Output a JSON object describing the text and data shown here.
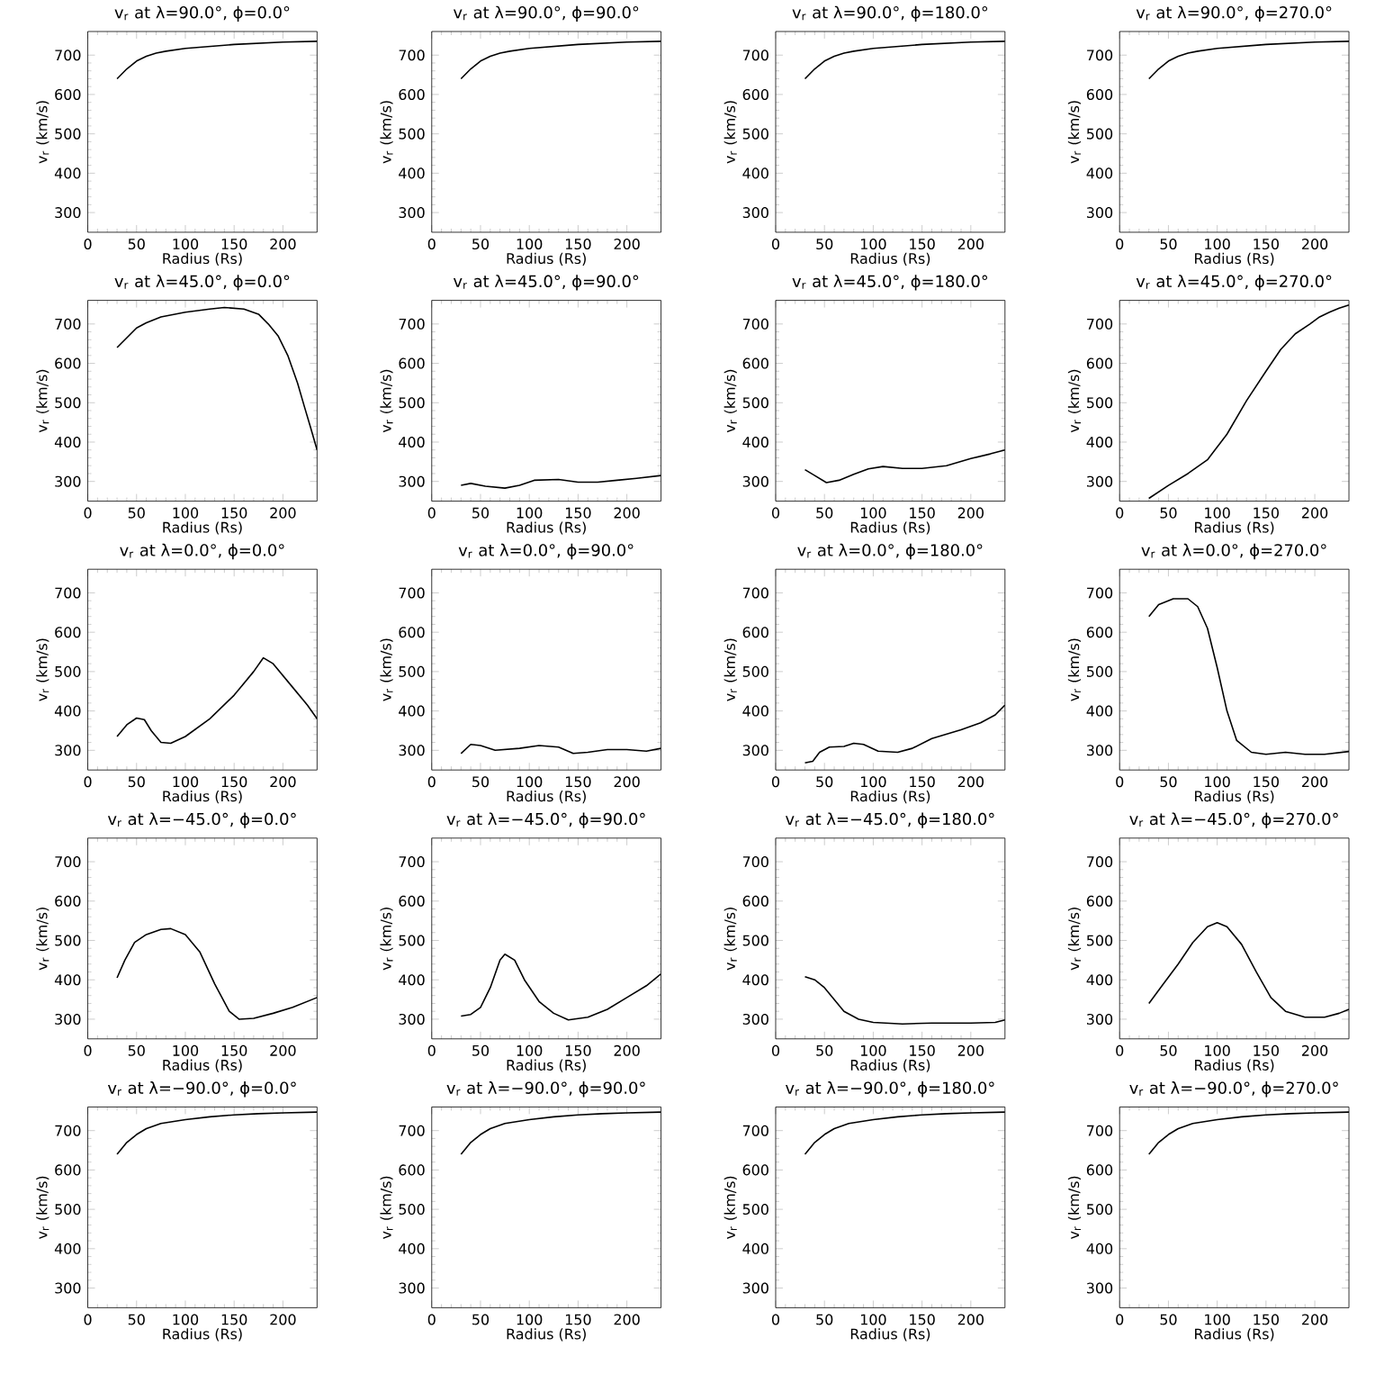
{
  "chart_data": [
    {
      "type": "line",
      "title": "v$_{r}$ at λ=90.0°, ϕ=0.0°",
      "xlabel": "Radius (Rs)",
      "ylabel": "v$_{r}$ (km/s)",
      "xlim": [
        0,
        235
      ],
      "ylim": [
        250,
        760
      ],
      "xticks": [
        0,
        50,
        100,
        150,
        200
      ],
      "yticks": [
        300,
        400,
        500,
        600,
        700
      ],
      "color": "#000000",
      "x": [
        30,
        40,
        50,
        60,
        70,
        80,
        100,
        125,
        150,
        175,
        200,
        235
      ],
      "values": [
        640,
        665,
        685,
        697,
        705,
        710,
        717,
        722,
        727,
        730,
        733,
        735
      ]
    },
    {
      "type": "line",
      "title": "v$_{r}$ at λ=90.0°, ϕ=90.0°",
      "xlabel": "Radius (Rs)",
      "ylabel": "v$_{r}$ (km/s)",
      "xlim": [
        0,
        235
      ],
      "ylim": [
        250,
        760
      ],
      "xticks": [
        0,
        50,
        100,
        150,
        200
      ],
      "yticks": [
        300,
        400,
        500,
        600,
        700
      ],
      "color": "#000000",
      "x": [
        30,
        40,
        50,
        60,
        70,
        80,
        100,
        125,
        150,
        175,
        200,
        235
      ],
      "values": [
        640,
        665,
        685,
        697,
        705,
        710,
        717,
        722,
        727,
        730,
        733,
        735
      ]
    },
    {
      "type": "line",
      "title": "v$_{r}$ at λ=90.0°, ϕ=180.0°",
      "xlabel": "Radius (Rs)",
      "ylabel": "v$_{r}$ (km/s)",
      "xlim": [
        0,
        235
      ],
      "ylim": [
        250,
        760
      ],
      "xticks": [
        0,
        50,
        100,
        150,
        200
      ],
      "yticks": [
        300,
        400,
        500,
        600,
        700
      ],
      "color": "#000000",
      "x": [
        30,
        40,
        50,
        60,
        70,
        80,
        100,
        125,
        150,
        175,
        200,
        235
      ],
      "values": [
        640,
        665,
        685,
        697,
        705,
        710,
        717,
        722,
        727,
        730,
        733,
        735
      ]
    },
    {
      "type": "line",
      "title": "v$_{r}$ at λ=90.0°, ϕ=270.0°",
      "xlabel": "Radius (Rs)",
      "ylabel": "v$_{r}$ (km/s)",
      "xlim": [
        0,
        235
      ],
      "ylim": [
        250,
        760
      ],
      "xticks": [
        0,
        50,
        100,
        150,
        200
      ],
      "yticks": [
        300,
        400,
        500,
        600,
        700
      ],
      "color": "#000000",
      "x": [
        30,
        40,
        50,
        60,
        70,
        80,
        100,
        125,
        150,
        175,
        200,
        235
      ],
      "values": [
        640,
        665,
        685,
        697,
        705,
        710,
        717,
        722,
        727,
        730,
        733,
        735
      ]
    },
    {
      "type": "line",
      "title": "v$_{r}$ at λ=45.0°, ϕ=0.0°",
      "xlabel": "Radius (Rs)",
      "ylabel": "v$_{r}$ (km/s)",
      "xlim": [
        0,
        235
      ],
      "ylim": [
        250,
        760
      ],
      "xticks": [
        0,
        50,
        100,
        150,
        200
      ],
      "yticks": [
        300,
        400,
        500,
        600,
        700
      ],
      "color": "#000000",
      "x": [
        30,
        40,
        50,
        60,
        75,
        100,
        125,
        140,
        160,
        175,
        185,
        195,
        205,
        215,
        222,
        228,
        235
      ],
      "values": [
        640,
        665,
        690,
        703,
        718,
        730,
        738,
        742,
        738,
        725,
        700,
        670,
        620,
        550,
        490,
        440,
        380
      ]
    },
    {
      "type": "line",
      "title": "v$_{r}$ at λ=45.0°, ϕ=90.0°",
      "xlabel": "Radius (Rs)",
      "ylabel": "v$_{r}$ (km/s)",
      "xlim": [
        0,
        235
      ],
      "ylim": [
        250,
        760
      ],
      "xticks": [
        0,
        50,
        100,
        150,
        200
      ],
      "yticks": [
        300,
        400,
        500,
        600,
        700
      ],
      "color": "#000000",
      "x": [
        30,
        40,
        55,
        75,
        90,
        105,
        130,
        150,
        170,
        190,
        210,
        235
      ],
      "values": [
        290,
        295,
        288,
        283,
        290,
        303,
        305,
        298,
        298,
        303,
        308,
        315
      ]
    },
    {
      "type": "line",
      "title": "v$_{r}$ at λ=45.0°, ϕ=180.0°",
      "xlabel": "Radius (Rs)",
      "ylabel": "v$_{r}$ (km/s)",
      "xlim": [
        0,
        235
      ],
      "ylim": [
        250,
        760
      ],
      "xticks": [
        0,
        50,
        100,
        150,
        200
      ],
      "yticks": [
        300,
        400,
        500,
        600,
        700
      ],
      "color": "#000000",
      "x": [
        30,
        40,
        52,
        65,
        80,
        95,
        110,
        130,
        150,
        175,
        200,
        220,
        235
      ],
      "values": [
        330,
        315,
        297,
        303,
        318,
        332,
        338,
        333,
        333,
        340,
        358,
        370,
        380
      ]
    },
    {
      "type": "line",
      "title": "v$_{r}$ at λ=45.0°, ϕ=270.0°",
      "xlabel": "Radius (Rs)",
      "ylabel": "v$_{r}$ (km/s)",
      "xlim": [
        0,
        235
      ],
      "ylim": [
        250,
        760
      ],
      "xticks": [
        0,
        50,
        100,
        150,
        200
      ],
      "yticks": [
        300,
        400,
        500,
        600,
        700
      ],
      "color": "#000000",
      "x": [
        30,
        50,
        70,
        90,
        110,
        130,
        150,
        165,
        180,
        195,
        205,
        215,
        225,
        235
      ],
      "values": [
        257,
        290,
        320,
        355,
        420,
        505,
        580,
        635,
        675,
        700,
        718,
        730,
        740,
        748
      ]
    },
    {
      "type": "line",
      "title": "v$_{r}$ at λ=0.0°, ϕ=0.0°",
      "xlabel": "Radius (Rs)",
      "ylabel": "v$_{r}$ (km/s)",
      "xlim": [
        0,
        235
      ],
      "ylim": [
        250,
        760
      ],
      "xticks": [
        0,
        50,
        100,
        150,
        200
      ],
      "yticks": [
        300,
        400,
        500,
        600,
        700
      ],
      "color": "#000000",
      "x": [
        30,
        40,
        50,
        58,
        65,
        75,
        85,
        100,
        125,
        150,
        170,
        180,
        190,
        210,
        225,
        235
      ],
      "values": [
        335,
        365,
        382,
        378,
        350,
        320,
        318,
        335,
        380,
        440,
        500,
        535,
        520,
        460,
        415,
        380
      ]
    },
    {
      "type": "line",
      "title": "v$_{r}$ at λ=0.0°, ϕ=90.0°",
      "xlabel": "Radius (Rs)",
      "ylabel": "v$_{r}$ (km/s)",
      "xlim": [
        0,
        235
      ],
      "ylim": [
        250,
        760
      ],
      "xticks": [
        0,
        50,
        100,
        150,
        200
      ],
      "yticks": [
        300,
        400,
        500,
        600,
        700
      ],
      "color": "#000000",
      "x": [
        30,
        40,
        50,
        65,
        90,
        110,
        130,
        145,
        160,
        180,
        200,
        220,
        235
      ],
      "values": [
        292,
        315,
        312,
        300,
        305,
        312,
        308,
        292,
        295,
        302,
        302,
        298,
        305
      ]
    },
    {
      "type": "line",
      "title": "v$_{r}$ at λ=0.0°, ϕ=180.0°",
      "xlabel": "Radius (Rs)",
      "ylabel": "v$_{r}$ (km/s)",
      "xlim": [
        0,
        235
      ],
      "ylim": [
        250,
        760
      ],
      "xticks": [
        0,
        50,
        100,
        150,
        200
      ],
      "yticks": [
        300,
        400,
        500,
        600,
        700
      ],
      "color": "#000000",
      "x": [
        30,
        38,
        45,
        55,
        70,
        80,
        90,
        105,
        125,
        140,
        160,
        190,
        210,
        225,
        235
      ],
      "values": [
        268,
        272,
        295,
        308,
        310,
        318,
        315,
        298,
        295,
        305,
        330,
        352,
        370,
        390,
        415
      ]
    },
    {
      "type": "line",
      "title": "v$_{r}$ at λ=0.0°, ϕ=270.0°",
      "xlabel": "Radius (Rs)",
      "ylabel": "v$_{r}$ (km/s)",
      "xlim": [
        0,
        235
      ],
      "ylim": [
        250,
        760
      ],
      "xticks": [
        0,
        50,
        100,
        150,
        200
      ],
      "yticks": [
        300,
        400,
        500,
        600,
        700
      ],
      "color": "#000000",
      "x": [
        30,
        40,
        55,
        70,
        80,
        90,
        100,
        110,
        120,
        135,
        150,
        170,
        190,
        210,
        235
      ],
      "values": [
        640,
        670,
        685,
        685,
        665,
        610,
        510,
        400,
        325,
        295,
        290,
        295,
        290,
        290,
        297
      ]
    },
    {
      "type": "line",
      "title": "v$_{r}$ at λ=−45.0°, ϕ=0.0°",
      "xlabel": "Radius (Rs)",
      "ylabel": "v$_{r}$ (km/s)",
      "xlim": [
        0,
        235
      ],
      "ylim": [
        250,
        760
      ],
      "xticks": [
        0,
        50,
        100,
        150,
        200
      ],
      "yticks": [
        300,
        400,
        500,
        600,
        700
      ],
      "color": "#000000",
      "x": [
        30,
        38,
        48,
        60,
        75,
        85,
        100,
        115,
        130,
        145,
        155,
        170,
        190,
        210,
        235
      ],
      "values": [
        405,
        450,
        495,
        515,
        528,
        530,
        515,
        470,
        390,
        320,
        300,
        302,
        315,
        330,
        355
      ]
    },
    {
      "type": "line",
      "title": "v$_{r}$ at λ=−45.0°, ϕ=90.0°",
      "xlabel": "Radius (Rs)",
      "ylabel": "v$_{r}$ (km/s)",
      "xlim": [
        0,
        235
      ],
      "ylim": [
        250,
        760
      ],
      "xticks": [
        0,
        50,
        100,
        150,
        200
      ],
      "yticks": [
        300,
        400,
        500,
        600,
        700
      ],
      "color": "#000000",
      "x": [
        30,
        40,
        50,
        60,
        70,
        75,
        85,
        95,
        110,
        125,
        140,
        160,
        180,
        200,
        220,
        235
      ],
      "values": [
        308,
        312,
        330,
        380,
        450,
        465,
        450,
        400,
        345,
        315,
        298,
        305,
        325,
        355,
        385,
        415
      ]
    },
    {
      "type": "line",
      "title": "v$_{r}$ at λ=−45.0°, ϕ=180.0°",
      "xlabel": "Radius (Rs)",
      "ylabel": "v$_{r}$ (km/s)",
      "xlim": [
        0,
        235
      ],
      "ylim": [
        250,
        760
      ],
      "xticks": [
        0,
        50,
        100,
        150,
        200
      ],
      "yticks": [
        300,
        400,
        500,
        600,
        700
      ],
      "color": "#000000",
      "x": [
        30,
        40,
        50,
        60,
        70,
        85,
        100,
        130,
        160,
        200,
        225,
        235
      ],
      "values": [
        408,
        400,
        380,
        350,
        320,
        300,
        292,
        288,
        290,
        290,
        292,
        298
      ]
    },
    {
      "type": "line",
      "title": "v$_{r}$ at λ=−45.0°, ϕ=270.0°",
      "xlabel": "Radius (Rs)",
      "ylabel": "v$_{r}$ (km/s)",
      "xlim": [
        0,
        235
      ],
      "ylim": [
        250,
        760
      ],
      "xticks": [
        0,
        50,
        100,
        150,
        200
      ],
      "yticks": [
        300,
        400,
        500,
        600,
        700
      ],
      "color": "#000000",
      "x": [
        30,
        45,
        60,
        75,
        90,
        100,
        110,
        125,
        140,
        155,
        170,
        190,
        210,
        225,
        235
      ],
      "values": [
        340,
        390,
        440,
        495,
        535,
        545,
        535,
        490,
        420,
        355,
        320,
        305,
        305,
        315,
        325
      ]
    },
    {
      "type": "line",
      "title": "v$_{r}$ at λ=−90.0°, ϕ=0.0°",
      "xlabel": "Radius (Rs)",
      "ylabel": "v$_{r}$ (km/s)",
      "xlim": [
        0,
        235
      ],
      "ylim": [
        250,
        760
      ],
      "xticks": [
        0,
        50,
        100,
        150,
        200
      ],
      "yticks": [
        300,
        400,
        500,
        600,
        700
      ],
      "color": "#000000",
      "x": [
        30,
        40,
        50,
        60,
        75,
        100,
        125,
        150,
        175,
        200,
        235
      ],
      "values": [
        640,
        670,
        690,
        705,
        718,
        728,
        735,
        740,
        743,
        745,
        747
      ]
    },
    {
      "type": "line",
      "title": "v$_{r}$ at λ=−90.0°, ϕ=90.0°",
      "xlabel": "Radius (Rs)",
      "ylabel": "v$_{r}$ (km/s)",
      "xlim": [
        0,
        235
      ],
      "ylim": [
        250,
        760
      ],
      "xticks": [
        0,
        50,
        100,
        150,
        200
      ],
      "yticks": [
        300,
        400,
        500,
        600,
        700
      ],
      "color": "#000000",
      "x": [
        30,
        40,
        50,
        60,
        75,
        100,
        125,
        150,
        175,
        200,
        235
      ],
      "values": [
        640,
        670,
        690,
        705,
        718,
        728,
        735,
        740,
        743,
        745,
        747
      ]
    },
    {
      "type": "line",
      "title": "v$_{r}$ at λ=−90.0°, ϕ=180.0°",
      "xlabel": "Radius (Rs)",
      "ylabel": "v$_{r}$ (km/s)",
      "xlim": [
        0,
        235
      ],
      "ylim": [
        250,
        760
      ],
      "xticks": [
        0,
        50,
        100,
        150,
        200
      ],
      "yticks": [
        300,
        400,
        500,
        600,
        700
      ],
      "color": "#000000",
      "x": [
        30,
        40,
        50,
        60,
        75,
        100,
        125,
        150,
        175,
        200,
        235
      ],
      "values": [
        640,
        670,
        690,
        705,
        718,
        728,
        735,
        740,
        743,
        745,
        747
      ]
    },
    {
      "type": "line",
      "title": "v$_{r}$ at λ=−90.0°, ϕ=270.0°",
      "xlabel": "Radius (Rs)",
      "ylabel": "v$_{r}$ (km/s)",
      "xlim": [
        0,
        235
      ],
      "ylim": [
        250,
        760
      ],
      "xticks": [
        0,
        50,
        100,
        150,
        200
      ],
      "yticks": [
        300,
        400,
        500,
        600,
        700
      ],
      "color": "#000000",
      "x": [
        30,
        40,
        50,
        60,
        75,
        100,
        125,
        150,
        175,
        200,
        235
      ],
      "values": [
        640,
        670,
        690,
        705,
        718,
        728,
        735,
        740,
        743,
        745,
        747
      ]
    }
  ]
}
